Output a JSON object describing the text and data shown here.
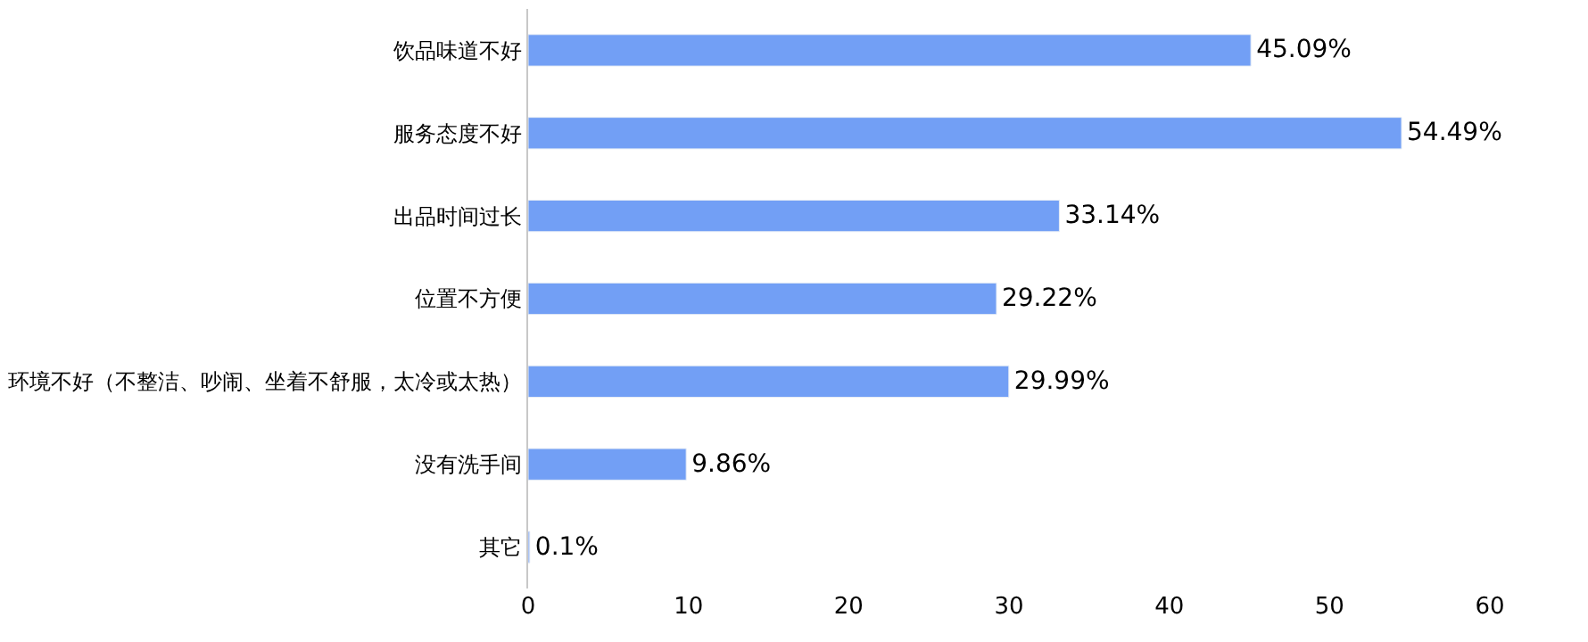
{
  "chart_data": {
    "type": "bar",
    "orientation": "horizontal",
    "categories": [
      "饮品味道不好",
      "服务态度不好",
      "出品时间过长",
      "位置不方便",
      "环境不好（不整洁、吵闹、坐着不舒服，太冷或太热）",
      "没有洗手间",
      "其它"
    ],
    "values": [
      45.09,
      54.49,
      33.14,
      29.22,
      29.99,
      9.86,
      0.1
    ],
    "value_labels": [
      "45.09%",
      "54.49%",
      "33.14%",
      "29.22%",
      "29.99%",
      "9.86%",
      "0.1%"
    ],
    "color": "#729ff5",
    "xlim": [
      0,
      60
    ],
    "xticks": [
      0,
      10,
      20,
      30,
      40,
      50,
      60
    ]
  }
}
